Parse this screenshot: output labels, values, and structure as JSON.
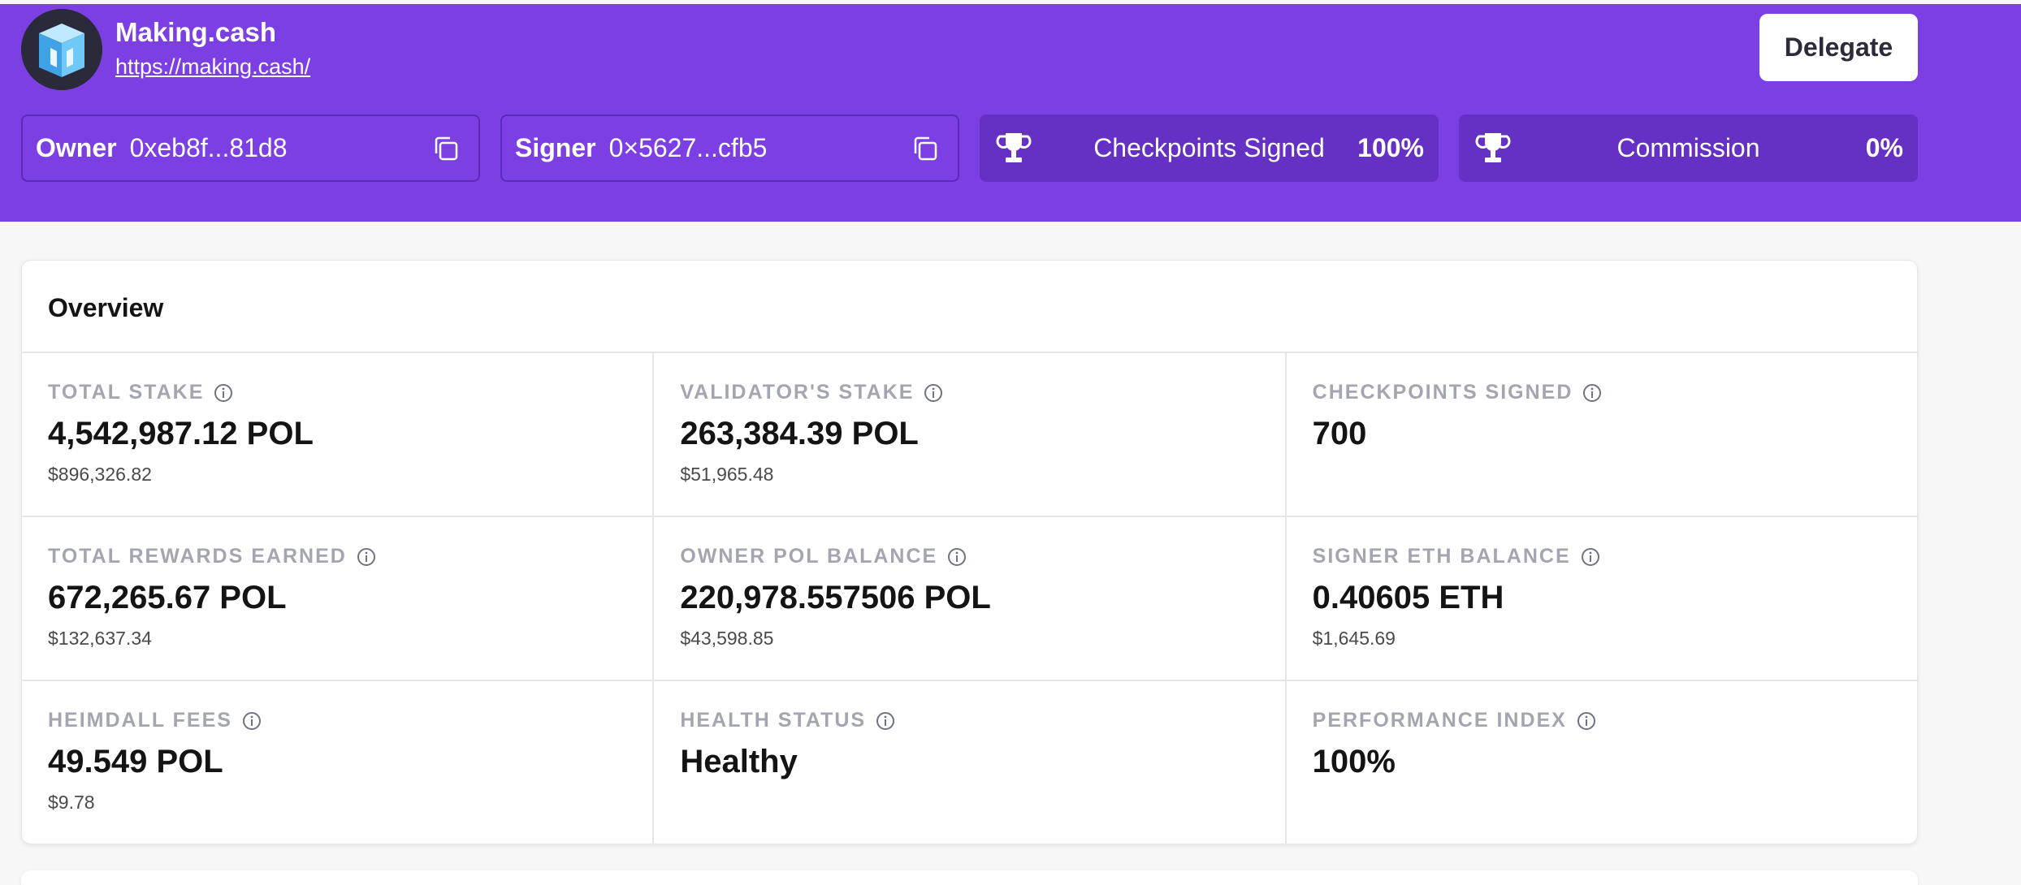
{
  "header": {
    "brand_name": "Making.cash",
    "brand_url": "https://making.cash/",
    "delegate_label": "Delegate",
    "owner": {
      "label": "Owner",
      "value": "0xeb8f...81d8"
    },
    "signer": {
      "label": "Signer",
      "value": "0×5627...cfb5"
    },
    "checkpoints": {
      "label": "Checkpoints Signed",
      "value": "100%"
    },
    "commission": {
      "label": "Commission",
      "value": "0%"
    }
  },
  "overview": {
    "title": "Overview",
    "cells": [
      {
        "label": "TOTAL STAKE",
        "value": "4,542,987.12 POL",
        "sub": "$896,326.82"
      },
      {
        "label": "VALIDATOR'S STAKE",
        "value": "263,384.39 POL",
        "sub": "$51,965.48"
      },
      {
        "label": "CHECKPOINTS SIGNED",
        "value": "700",
        "sub": ""
      },
      {
        "label": "TOTAL REWARDS EARNED",
        "value": "672,265.67 POL",
        "sub": "$132,637.34"
      },
      {
        "label": "OWNER POL BALANCE",
        "value": "220,978.557506 POL",
        "sub": "$43,598.85"
      },
      {
        "label": "SIGNER ETH BALANCE",
        "value": "0.40605 ETH",
        "sub": "$1,645.69"
      },
      {
        "label": "HEIMDALL FEES",
        "value": "49.549 POL",
        "sub": "$9.78"
      },
      {
        "label": "HEALTH STATUS",
        "value": "Healthy",
        "sub": ""
      },
      {
        "label": "PERFORMANCE INDEX",
        "value": "100%",
        "sub": ""
      }
    ]
  },
  "colors": {
    "header_bg": "#7b3fe4",
    "stat_card_bg": "#6530c4",
    "label_gray": "#a3a5b0"
  }
}
